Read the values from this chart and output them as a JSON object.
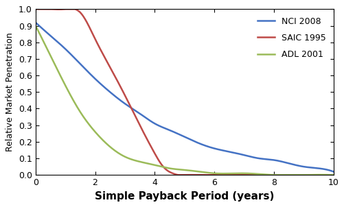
{
  "title": "",
  "xlabel": "Simple Payback Period (years)",
  "ylabel": "Relative Market Penetration",
  "xlim": [
    0,
    10
  ],
  "ylim": [
    0,
    1.0
  ],
  "xticks": [
    0,
    2,
    4,
    6,
    8,
    10
  ],
  "yticks": [
    0.0,
    0.1,
    0.2,
    0.3,
    0.4,
    0.5,
    0.6,
    0.7,
    0.8,
    0.9,
    1.0
  ],
  "curves": {
    "NCI 2008": {
      "color": "#4472C4",
      "x": [
        0,
        0.5,
        1,
        1.5,
        2,
        2.5,
        3,
        3.5,
        4,
        4.5,
        5,
        5.5,
        6,
        6.5,
        7,
        7.5,
        8,
        8.5,
        9,
        9.5,
        10
      ],
      "y": [
        0.92,
        0.84,
        0.76,
        0.67,
        0.58,
        0.5,
        0.43,
        0.37,
        0.31,
        0.27,
        0.23,
        0.19,
        0.16,
        0.14,
        0.12,
        0.1,
        0.09,
        0.07,
        0.05,
        0.04,
        0.02
      ]
    },
    "SAIC 1995": {
      "color": "#BE4B48",
      "x": [
        0,
        0.5,
        1.0,
        1.5,
        2.0,
        2.5,
        3.0,
        3.5,
        4.0,
        4.2,
        4.4,
        4.6,
        4.8,
        5.0,
        5.5,
        6,
        7,
        8,
        9,
        10
      ],
      "y": [
        1.0,
        1.0,
        1.0,
        0.98,
        0.82,
        0.65,
        0.48,
        0.3,
        0.13,
        0.07,
        0.03,
        0.01,
        0.0,
        0.0,
        0.0,
        0.0,
        0.0,
        0.0,
        0.0,
        0.0
      ]
    },
    "ADL 2001": {
      "color": "#9BBB59",
      "x": [
        0,
        0.5,
        1,
        1.5,
        2,
        2.5,
        3,
        3.5,
        4,
        4.5,
        5,
        5.5,
        6,
        7,
        8,
        9,
        10
      ],
      "y": [
        0.9,
        0.72,
        0.54,
        0.38,
        0.26,
        0.17,
        0.11,
        0.08,
        0.06,
        0.04,
        0.03,
        0.02,
        0.01,
        0.01,
        0.0,
        0.0,
        0.0
      ]
    }
  },
  "legend_order": [
    "NCI 2008",
    "SAIC 1995",
    "ADL 2001"
  ],
  "figure_bg_color": "#FFFFFF",
  "plot_bg_color": "#FFFFFF",
  "linewidth": 1.8,
  "xlabel_fontsize": 11,
  "ylabel_fontsize": 9,
  "tick_fontsize": 9,
  "legend_fontsize": 9,
  "xlabel_bold": true,
  "ylabel_bold": false
}
